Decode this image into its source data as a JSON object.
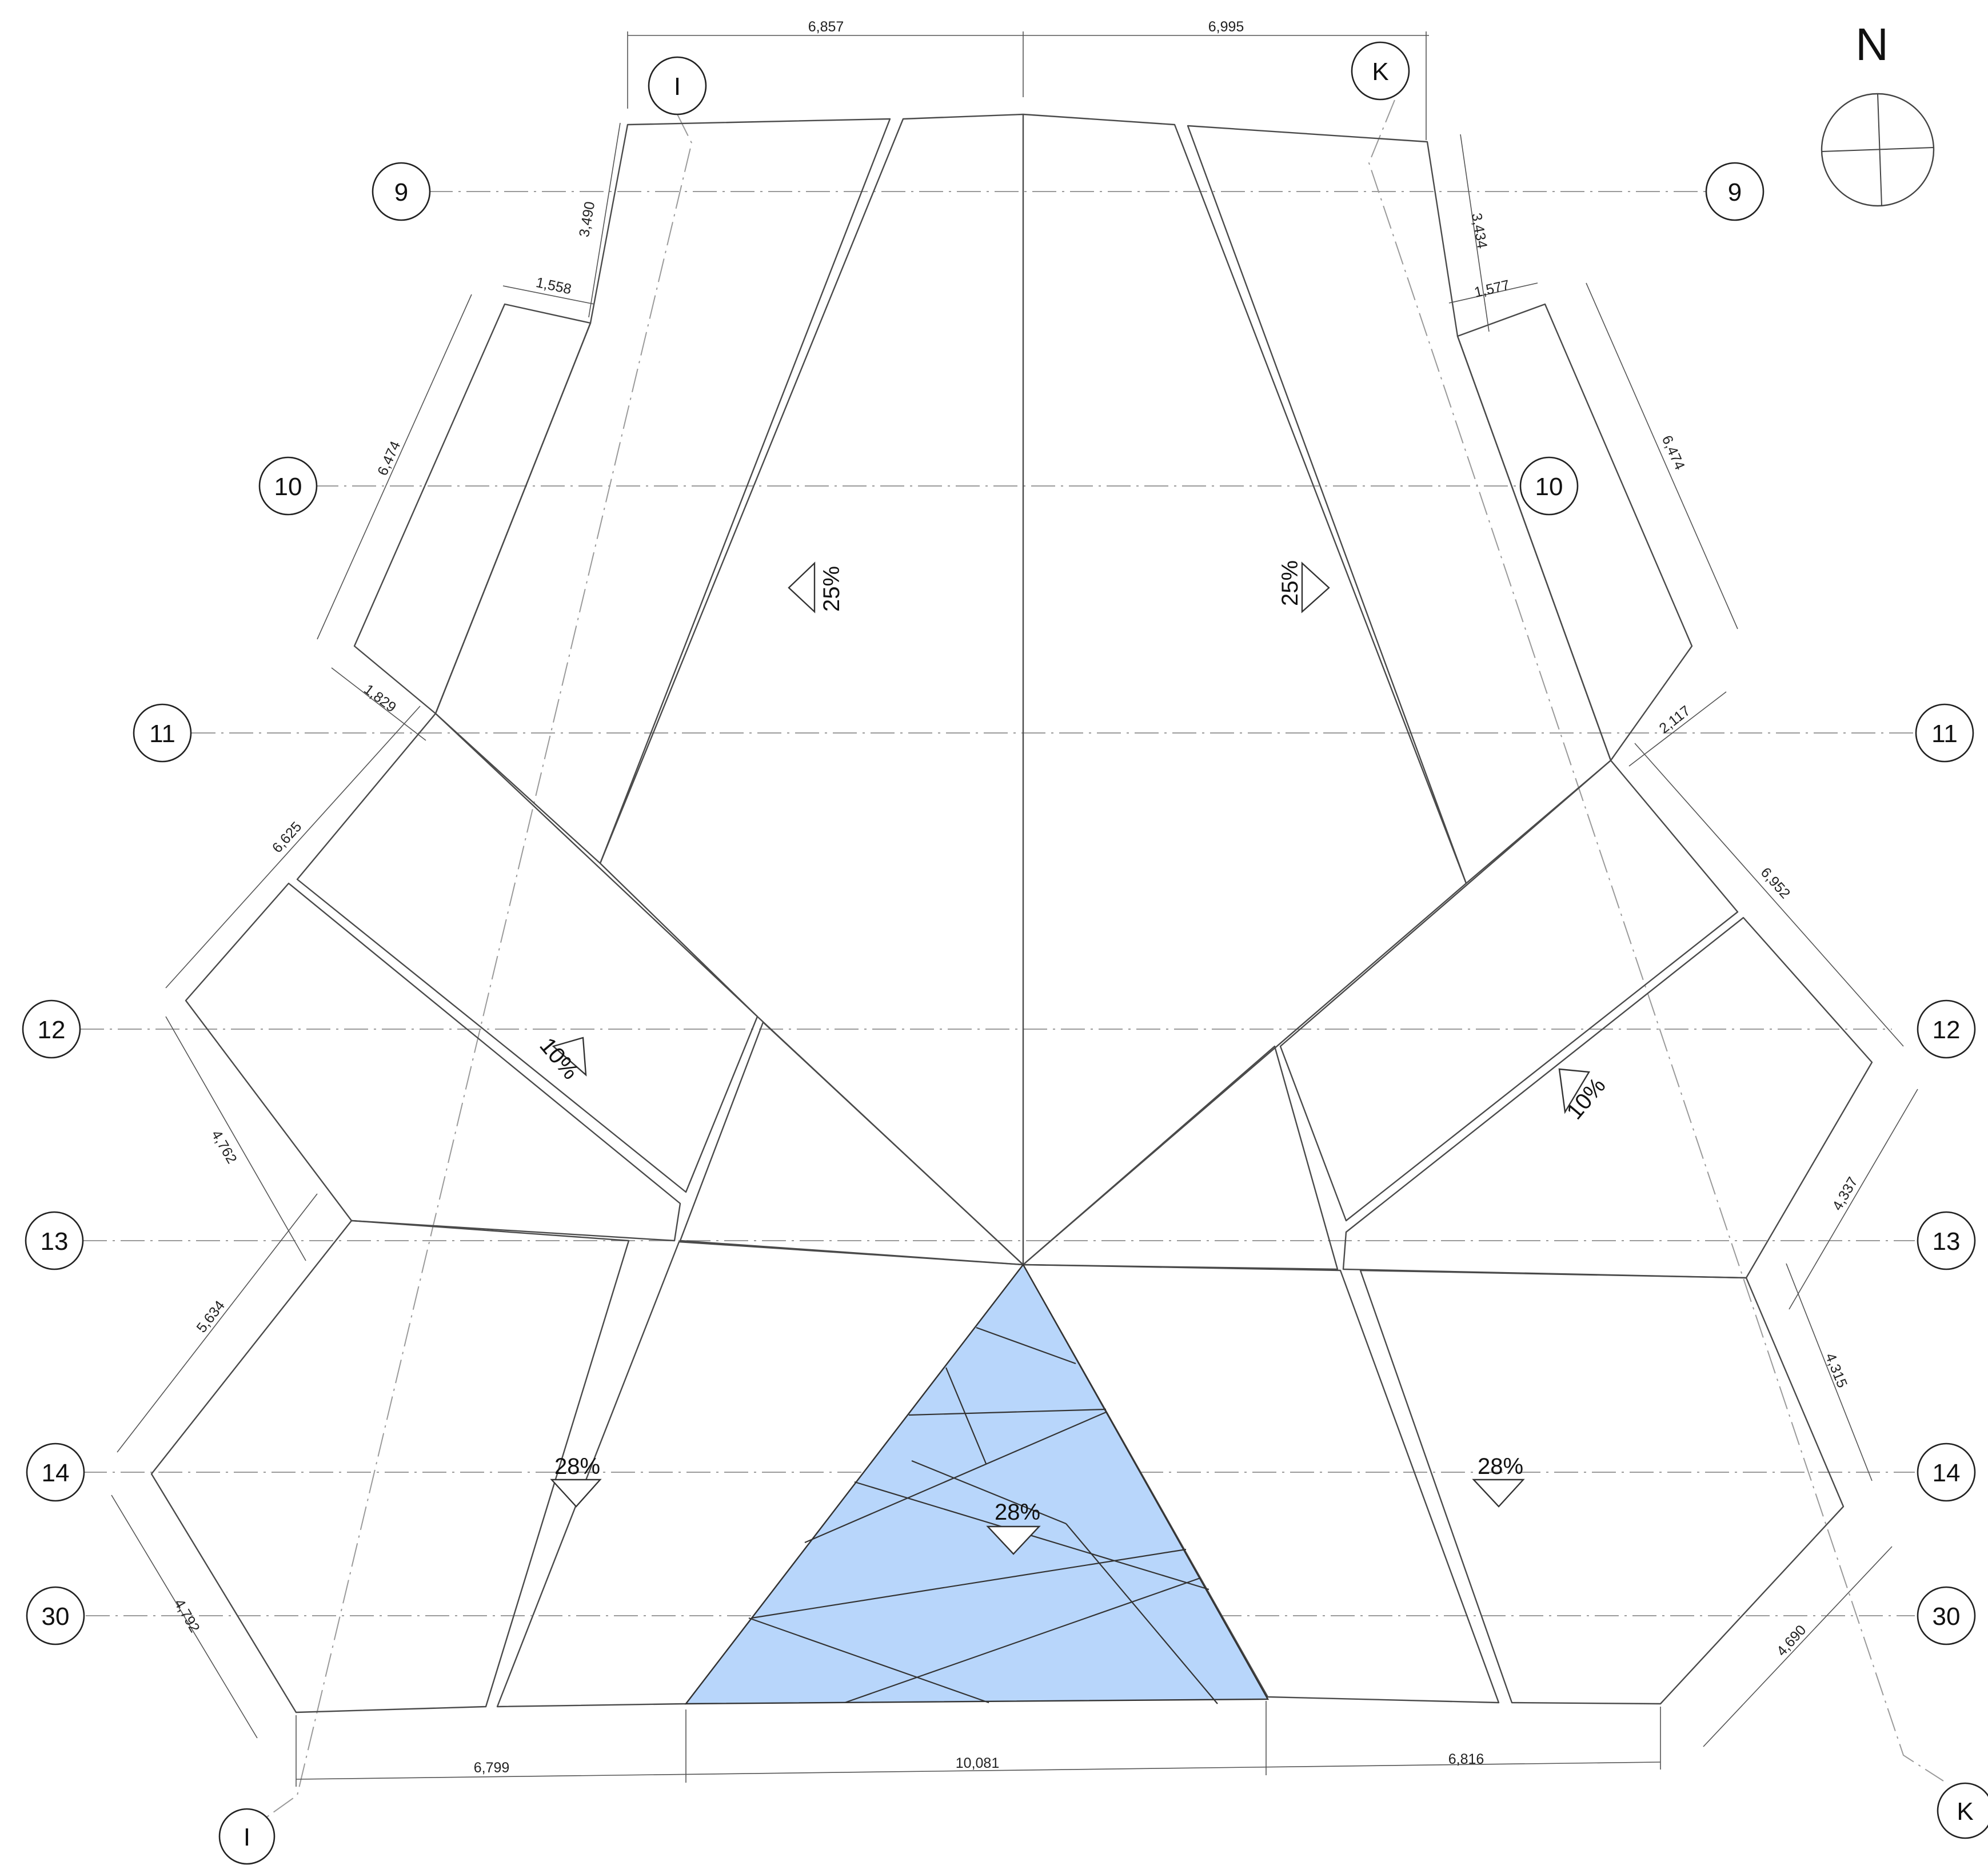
{
  "drawing": {
    "north_label": "N",
    "grid_labels": {
      "row_9": "9",
      "row_10": "10",
      "row_11": "11",
      "row_12": "12",
      "row_13": "13",
      "row_14": "14",
      "row_30": "30",
      "col_I": "I",
      "col_K": "K"
    },
    "dimensions": {
      "top_left": "6,857",
      "top_right": "6,995",
      "left_3490": "3,490",
      "left_1558": "1,558",
      "left_6474": "6,474",
      "left_1829": "1,829",
      "left_6625": "6,625",
      "left_4762": "4,762",
      "left_5634": "5,634",
      "left_4792": "4,792",
      "right_3434": "3,434",
      "right_1577": "1,577",
      "right_6474": "6,474",
      "right_2117": "2,117",
      "right_6952": "6,952",
      "right_4337": "4,337",
      "right_4315": "4,315",
      "right_4690": "4,690",
      "bottom_left": "6,799",
      "bottom_center": "10,081",
      "bottom_right": "6,816"
    },
    "slopes": {
      "upper_left": "25%",
      "upper_right": "25%",
      "middle_left": "10%",
      "middle_right": "10%",
      "lower_left": "28%",
      "lower_right": "28%",
      "glass": "28%"
    },
    "colors": {
      "glass_fill": "#b8d6fb",
      "line": "#4a4a4a",
      "hatch": "#9a9a9a"
    }
  }
}
